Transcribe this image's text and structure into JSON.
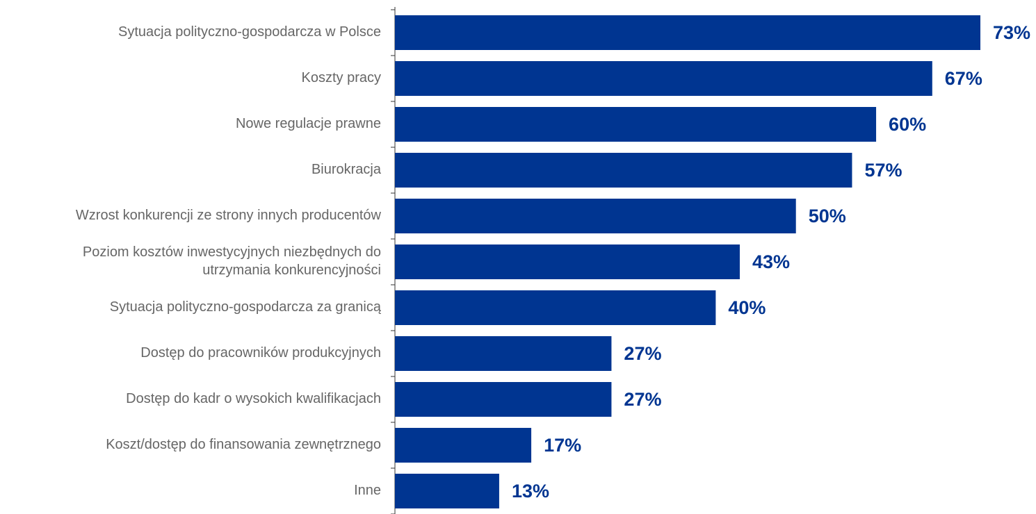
{
  "chart_data": {
    "type": "bar",
    "orientation": "horizontal",
    "color": "#003591",
    "categories": [
      "Sytuacja polityczno-gospodarcza w Polsce",
      "Koszty pracy",
      "Nowe regulacje prawne",
      "Biurokracja",
      "Wzrost konkurencji ze strony innych producentów",
      "Poziom kosztów inwestycyjnych niezbędnych do\nutrzymania konkurencyjności",
      "Sytuacja polityczno-gospodarcza za granicą",
      "Dostęp do pracowników produkcyjnych",
      "Dostęp do kadr o wysokich kwalifikacjach",
      "Koszt/dostęp do finansowania zewnętrznego",
      "Inne"
    ],
    "values": [
      73,
      67,
      60,
      57,
      50,
      43,
      40,
      27,
      27,
      17,
      13
    ],
    "value_labels": [
      "73%",
      "67%",
      "60%",
      "57%",
      "50%",
      "43%",
      "40%",
      "27%",
      "27%",
      "17%",
      "13%"
    ]
  }
}
